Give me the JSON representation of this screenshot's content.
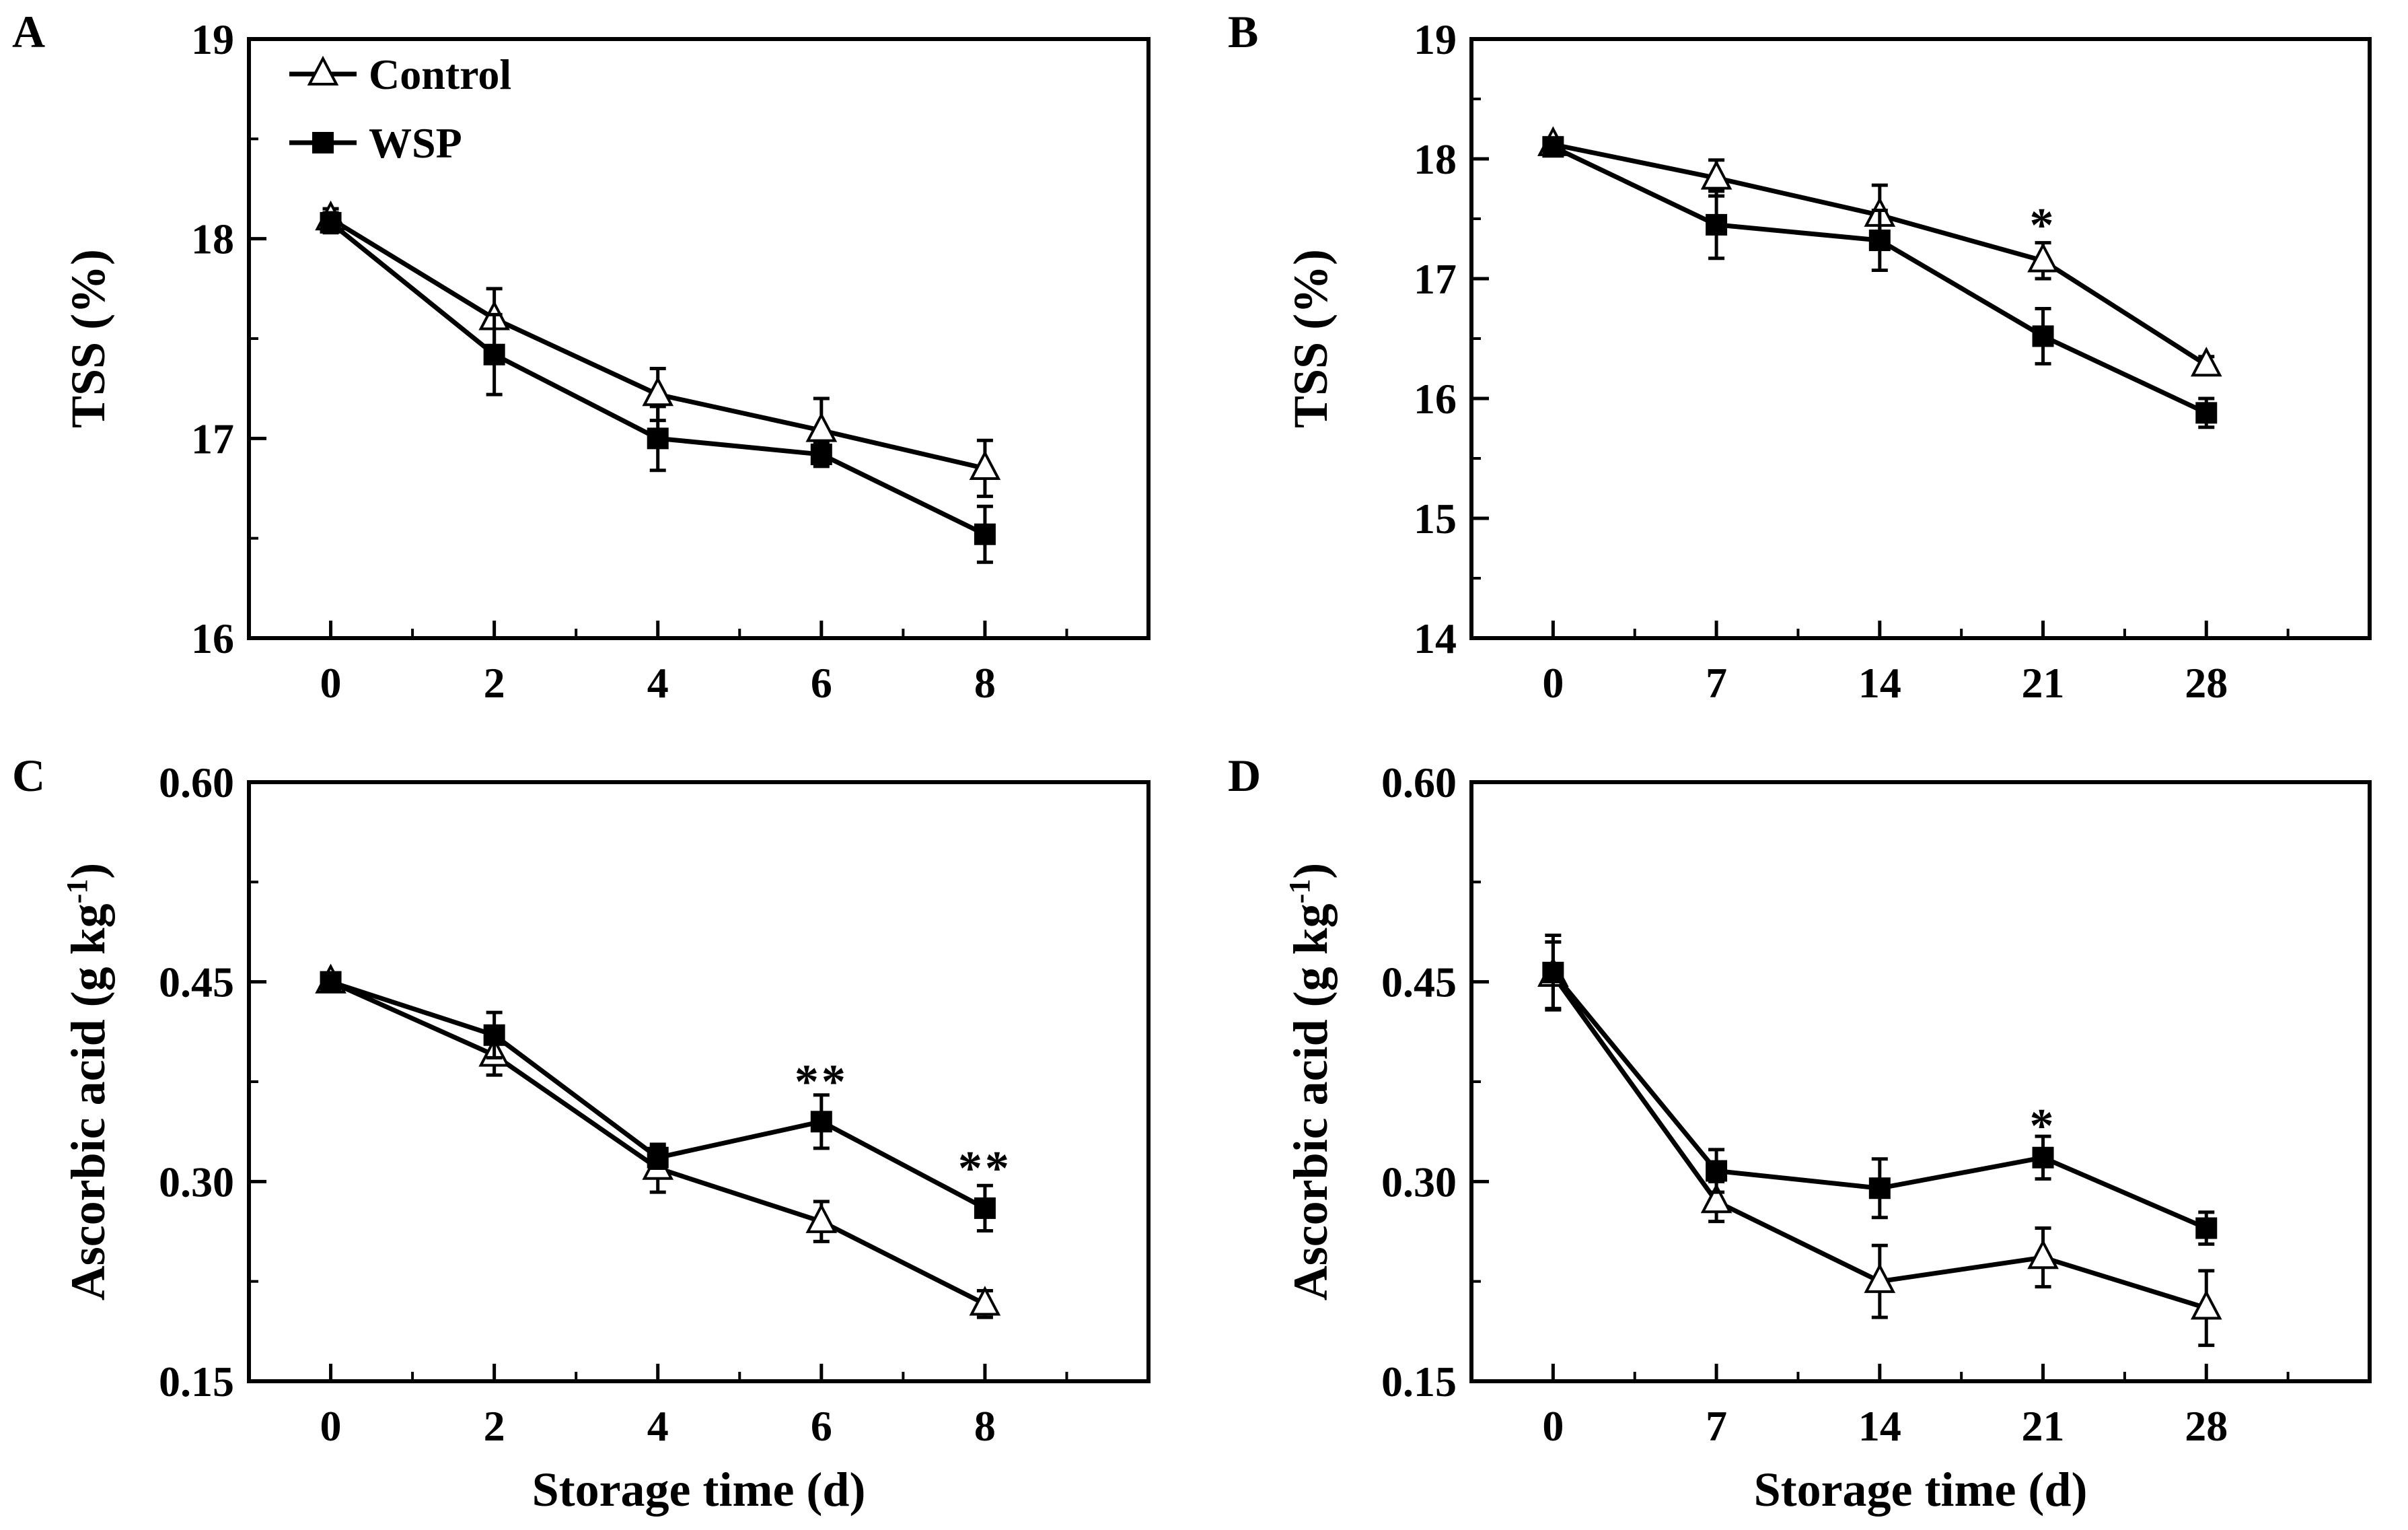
{
  "legend": {
    "control": "Control",
    "wsp": "WSP"
  },
  "chart_data": [
    {
      "panel": "A",
      "type": "line",
      "x": [
        0,
        2,
        4,
        6,
        8
      ],
      "xticks": [
        "0",
        "2",
        "4",
        "6",
        "8"
      ],
      "xlim": [
        -1,
        10
      ],
      "ylim": [
        16,
        19
      ],
      "yticks": [
        "16",
        "17",
        "18",
        "19"
      ],
      "ytick_values": [
        16,
        17,
        18,
        19
      ],
      "ylabel": "TSS (%)",
      "xlabel": "",
      "series": [
        {
          "name": "Control",
          "marker": "open-triangle",
          "values": [
            18.1,
            17.6,
            17.22,
            17.04,
            16.85
          ],
          "errors": [
            0.05,
            0.15,
            0.13,
            0.16,
            0.14
          ]
        },
        {
          "name": "WSP",
          "marker": "filled-square",
          "values": [
            18.08,
            17.42,
            17.0,
            16.92,
            16.52
          ],
          "errors": [
            0.05,
            0.2,
            0.16,
            0.06,
            0.14
          ]
        }
      ],
      "annotations": []
    },
    {
      "panel": "B",
      "type": "line",
      "x": [
        0,
        7,
        14,
        21,
        28
      ],
      "xticks": [
        "0",
        "7",
        "14",
        "21",
        "28"
      ],
      "xlim": [
        -3.5,
        35
      ],
      "ylim": [
        14,
        19
      ],
      "yticks": [
        "14",
        "15",
        "16",
        "17",
        "18",
        "19"
      ],
      "ytick_values": [
        14,
        15,
        16,
        17,
        18,
        19
      ],
      "ylabel": "TSS (%)",
      "xlabel": "",
      "series": [
        {
          "name": "Control",
          "marker": "open-triangle",
          "values": [
            18.12,
            17.84,
            17.53,
            17.15,
            16.28
          ],
          "errors": [
            0.05,
            0.15,
            0.25,
            0.15,
            0.07
          ]
        },
        {
          "name": "WSP",
          "marker": "filled-square",
          "values": [
            18.1,
            17.45,
            17.32,
            16.52,
            15.88
          ],
          "errors": [
            0.05,
            0.28,
            0.25,
            0.23,
            0.12
          ]
        }
      ],
      "annotations": [
        {
          "x": 21,
          "y": 17.48,
          "text": "*"
        }
      ]
    },
    {
      "panel": "C",
      "type": "line",
      "x": [
        0,
        2,
        4,
        6,
        8
      ],
      "xticks": [
        "0",
        "2",
        "4",
        "6",
        "8"
      ],
      "xlim": [
        -1,
        10
      ],
      "ylim": [
        0.15,
        0.6
      ],
      "yticks": [
        "0.15",
        "0.30",
        "0.45",
        "0.60"
      ],
      "ytick_values": [
        0.15,
        0.3,
        0.45,
        0.6
      ],
      "ylabel": "Ascorbic acid (g kg",
      "ylabel_sup": "-1",
      "ylabel_end": ")",
      "xlabel": "Storage time (d)",
      "series": [
        {
          "name": "Control",
          "marker": "open-triangle",
          "values": [
            0.45,
            0.395,
            0.31,
            0.27,
            0.208
          ],
          "errors": [
            0.004,
            0.015,
            0.018,
            0.015,
            0.01
          ]
        },
        {
          "name": "WSP",
          "marker": "filled-square",
          "values": [
            0.45,
            0.41,
            0.318,
            0.345,
            0.28
          ],
          "errors": [
            0.004,
            0.017,
            0.008,
            0.02,
            0.017
          ]
        }
      ],
      "annotations": [
        {
          "x": 6,
          "y": 0.378,
          "text": "**"
        },
        {
          "x": 8,
          "y": 0.313,
          "text": "**"
        }
      ]
    },
    {
      "panel": "D",
      "type": "line",
      "x": [
        0,
        7,
        14,
        21,
        28
      ],
      "xticks": [
        "0",
        "7",
        "14",
        "21",
        "28"
      ],
      "xlim": [
        -3.5,
        35
      ],
      "ylim": [
        0.15,
        0.6
      ],
      "yticks": [
        "0.15",
        "0.30",
        "0.45",
        "0.60"
      ],
      "ytick_values": [
        0.15,
        0.3,
        0.45,
        0.6
      ],
      "ylabel": "Ascorbic acid (g kg",
      "ylabel_sup": "-1",
      "ylabel_end": ")",
      "xlabel": "Storage time (d)",
      "series": [
        {
          "name": "Control",
          "marker": "open-triangle",
          "values": [
            0.455,
            0.285,
            0.225,
            0.243,
            0.205
          ],
          "errors": [
            0.025,
            0.015,
            0.027,
            0.022,
            0.028
          ]
        },
        {
          "name": "WSP",
          "marker": "filled-square",
          "values": [
            0.457,
            0.308,
            0.295,
            0.318,
            0.265
          ],
          "errors": [
            0.028,
            0.016,
            0.022,
            0.016,
            0.012
          ]
        }
      ],
      "annotations": [
        {
          "x": 21,
          "y": 0.345,
          "text": "*"
        }
      ]
    }
  ]
}
